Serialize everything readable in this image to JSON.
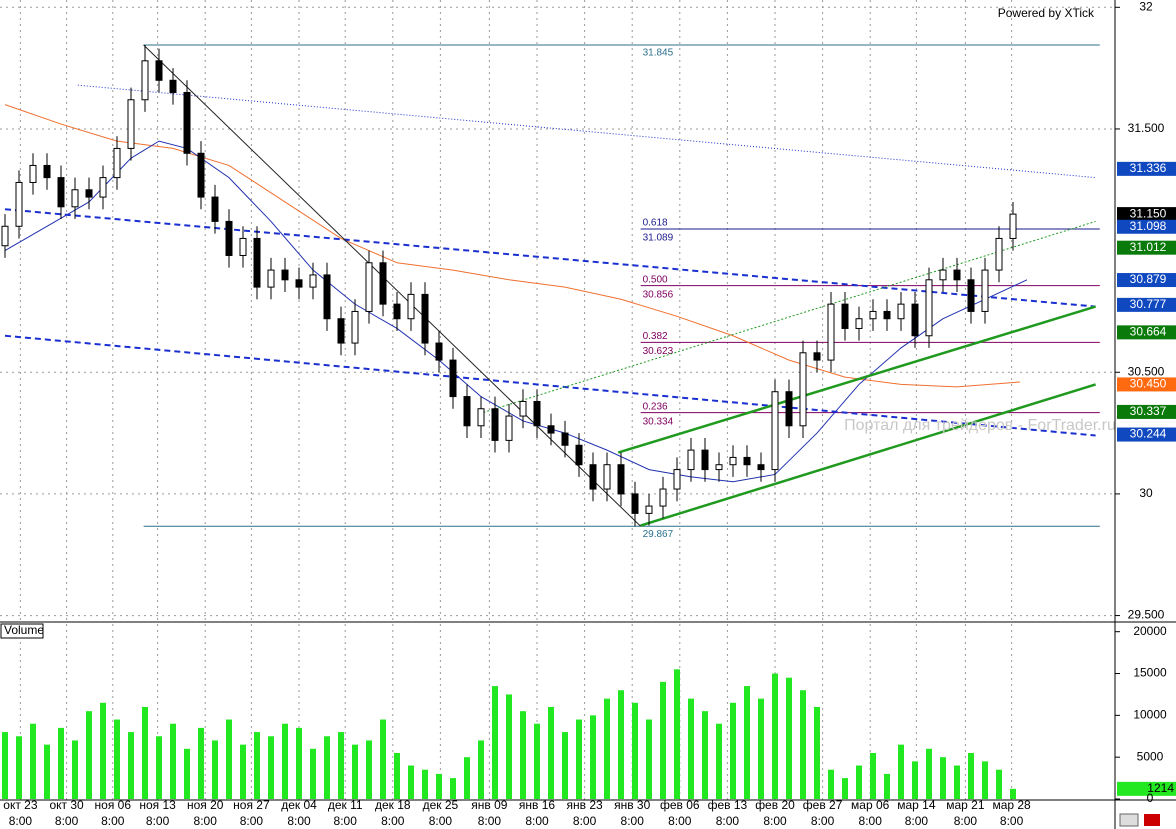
{
  "chart_data": [
    {
      "type": "candlestick",
      "credit": "Powered by XTick",
      "watermark": "Портал для трейдеров - ForTrader.ru",
      "up_color": "#ffffff",
      "down_color": "#000000",
      "wick_color": "#000000",
      "xlim": [
        0,
        79
      ],
      "ylim": [
        29.49,
        32.03
      ],
      "yticks": [
        {
          "value": 32,
          "label": "32"
        },
        {
          "value": 31.5,
          "label": "31.500"
        },
        {
          "value": 30.5,
          "label": "30.500"
        },
        {
          "value": 30,
          "label": "30"
        },
        {
          "value": 29.5,
          "label": "29.500"
        }
      ],
      "grid": true,
      "xticks": [
        {
          "value": 1.1,
          "label": "окт 23"
        },
        {
          "value": 4.4,
          "label": "окт 30"
        },
        {
          "value": 7.7,
          "label": "ноя 06"
        },
        {
          "value": 10.9,
          "label": "ноя 13"
        },
        {
          "value": 14.3,
          "label": "ноя 20"
        },
        {
          "value": 17.6,
          "label": "ноя 27"
        },
        {
          "value": 21,
          "label": "дек 04"
        },
        {
          "value": 24.3,
          "label": "дек 11"
        },
        {
          "value": 27.7,
          "label": "дек 18"
        },
        {
          "value": 31.1,
          "label": "дек 25"
        },
        {
          "value": 34.6,
          "label": "янв 09"
        },
        {
          "value": 38,
          "label": "янв 16"
        },
        {
          "value": 41.4,
          "label": "янв 23"
        },
        {
          "value": 44.8,
          "label": "янв 30"
        },
        {
          "value": 48.2,
          "label": "фев 06"
        },
        {
          "value": 51.6,
          "label": "фев 13"
        },
        {
          "value": 55,
          "label": "фев 20"
        },
        {
          "value": 58.4,
          "label": "фев 27"
        },
        {
          "value": 61.8,
          "label": "мар 06"
        },
        {
          "value": 65.1,
          "label": "мар 14"
        },
        {
          "value": 68.6,
          "label": "мар 21"
        },
        {
          "value": 71.9,
          "label": "мар 28"
        }
      ],
      "xtick_time": "8:00",
      "open": [
        31.02,
        31.1,
        31.28,
        31.35,
        31.3,
        31.18,
        31.25,
        31.22,
        31.3,
        31.42,
        31.62,
        31.78,
        31.7,
        31.65,
        31.4,
        31.22,
        31.12,
        30.98,
        31.05,
        30.85,
        30.92,
        30.88,
        30.85,
        30.9,
        30.72,
        30.62,
        30.75,
        30.95,
        30.78,
        30.72,
        30.82,
        30.62,
        30.55,
        30.4,
        30.28,
        30.35,
        30.22,
        30.32,
        30.38,
        30.28,
        30.25,
        30.2,
        30.12,
        30.02,
        30.12,
        30.0,
        29.92,
        29.95,
        30.02,
        30.1,
        30.18,
        30.1,
        30.12,
        30.15,
        30.12,
        30.1,
        30.42,
        30.28,
        30.58,
        30.55,
        30.78,
        30.68,
        30.72,
        30.75,
        30.72,
        30.78,
        30.65,
        30.88,
        30.92,
        30.88,
        30.75,
        30.92,
        31.05
      ],
      "high": [
        31.15,
        31.33,
        31.4,
        31.4,
        31.35,
        31.3,
        31.3,
        31.35,
        31.47,
        31.67,
        31.845,
        31.83,
        31.75,
        31.7,
        31.45,
        31.27,
        31.17,
        31.1,
        31.1,
        30.97,
        30.97,
        30.93,
        30.95,
        30.95,
        30.77,
        30.8,
        31.0,
        31.0,
        30.83,
        30.87,
        30.87,
        30.67,
        30.6,
        30.45,
        30.4,
        30.4,
        30.37,
        30.43,
        30.43,
        30.33,
        30.3,
        30.25,
        30.17,
        30.17,
        30.17,
        30.05,
        30.0,
        30.07,
        30.15,
        30.23,
        30.23,
        30.17,
        30.2,
        30.2,
        30.17,
        30.47,
        30.47,
        30.63,
        30.63,
        30.83,
        30.83,
        30.77,
        30.8,
        30.8,
        30.83,
        30.83,
        30.93,
        30.97,
        30.97,
        30.93,
        30.97,
        31.1,
        31.2
      ],
      "low": [
        30.97,
        31.05,
        31.23,
        31.25,
        31.13,
        31.13,
        31.17,
        31.17,
        31.25,
        31.37,
        31.57,
        31.65,
        31.6,
        31.35,
        31.17,
        31.07,
        30.93,
        30.93,
        30.8,
        30.8,
        30.83,
        30.8,
        30.8,
        30.67,
        30.57,
        30.57,
        30.7,
        30.73,
        30.67,
        30.67,
        30.57,
        30.5,
        30.35,
        30.23,
        30.23,
        30.17,
        30.17,
        30.27,
        30.23,
        30.2,
        30.15,
        30.07,
        29.97,
        29.97,
        29.95,
        29.867,
        29.87,
        29.9,
        29.97,
        30.05,
        30.05,
        30.05,
        30.07,
        30.07,
        30.05,
        30.05,
        30.23,
        30.23,
        30.5,
        30.5,
        30.63,
        30.63,
        30.67,
        30.67,
        30.67,
        30.6,
        30.6,
        30.83,
        30.83,
        30.7,
        30.7,
        30.87,
        31.0
      ],
      "close": [
        31.1,
        31.28,
        31.35,
        31.3,
        31.18,
        31.25,
        31.22,
        31.3,
        31.42,
        31.62,
        31.78,
        31.7,
        31.65,
        31.4,
        31.22,
        31.12,
        30.98,
        31.05,
        30.85,
        30.92,
        30.88,
        30.85,
        30.9,
        30.72,
        30.62,
        30.75,
        30.95,
        30.78,
        30.72,
        30.82,
        30.62,
        30.55,
        30.4,
        30.28,
        30.35,
        30.22,
        30.32,
        30.38,
        30.28,
        30.25,
        30.2,
        30.12,
        30.02,
        30.12,
        30.0,
        29.92,
        29.95,
        30.02,
        30.1,
        30.18,
        30.1,
        30.12,
        30.15,
        30.12,
        30.1,
        30.42,
        30.28,
        30.58,
        30.55,
        30.78,
        30.68,
        30.72,
        30.75,
        30.72,
        30.78,
        30.65,
        30.88,
        30.92,
        30.88,
        30.75,
        30.92,
        31.05,
        31.15
      ],
      "fib_levels": [
        {
          "color": "#2b6f8c",
          "x": [
            9.9,
            78.2
          ],
          "price": {
            "value": 31.845,
            "label": "31.845"
          }
        },
        {
          "color": "#1a1a8c",
          "x": [
            45.4,
            78.2
          ],
          "ratio": {
            "value": 0.618,
            "label": "0.618"
          },
          "price": {
            "value": 31.089,
            "label": "31.089"
          }
        },
        {
          "color": "#800060",
          "x": [
            45.4,
            78.2
          ],
          "ratio": {
            "value": 0.5,
            "label": "0.500"
          },
          "price": {
            "value": 30.856,
            "label": "30.856"
          }
        },
        {
          "color": "#800060",
          "x": [
            45.4,
            78.2
          ],
          "ratio": {
            "value": 0.382,
            "label": "0.382"
          },
          "price": {
            "value": 30.623,
            "label": "30.623"
          }
        },
        {
          "color": "#800060",
          "x": [
            45.4,
            78.2
          ],
          "ratio": {
            "value": 0.236,
            "label": "0.236"
          },
          "price": {
            "value": 30.334,
            "label": "30.334"
          }
        },
        {
          "color": "#2b6f8c",
          "x": [
            9.9,
            78.2
          ],
          "price": {
            "value": 29.867,
            "label": "29.867"
          }
        }
      ],
      "overlays": [
        {
          "color": "#f07030",
          "width": 1,
          "dash": "",
          "points": [
            [
              0,
              31.6
            ],
            [
              4,
              31.52
            ],
            [
              8,
              31.45
            ],
            [
              12,
              31.42
            ],
            [
              16,
              31.35
            ],
            [
              20,
              31.2
            ],
            [
              24,
              31.05
            ],
            [
              28,
              30.95
            ],
            [
              32,
              30.92
            ],
            [
              36,
              30.88
            ],
            [
              40,
              30.85
            ],
            [
              44,
              30.8
            ],
            [
              48,
              30.73
            ],
            [
              52,
              30.65
            ],
            [
              56,
              30.55
            ],
            [
              60,
              30.48
            ],
            [
              64,
              30.45
            ],
            [
              68,
              30.44
            ],
            [
              72.5,
              30.46
            ]
          ]
        },
        {
          "color": "#2030b0",
          "width": 1,
          "dash": "",
          "points": [
            [
              0,
              31.0
            ],
            [
              3,
              31.1
            ],
            [
              6,
              31.2
            ],
            [
              9,
              31.38
            ],
            [
              11,
              31.45
            ],
            [
              13,
              31.42
            ],
            [
              16,
              31.3
            ],
            [
              19,
              31.12
            ],
            [
              22,
              30.92
            ],
            [
              25,
              30.78
            ],
            [
              28,
              30.68
            ],
            [
              31,
              30.55
            ],
            [
              34,
              30.4
            ],
            [
              37,
              30.3
            ],
            [
              40,
              30.25
            ],
            [
              43,
              30.18
            ],
            [
              46,
              30.1
            ],
            [
              49,
              30.07
            ],
            [
              52,
              30.05
            ],
            [
              55,
              30.08
            ],
            [
              58,
              30.25
            ],
            [
              61,
              30.45
            ],
            [
              64,
              30.6
            ],
            [
              67,
              30.72
            ],
            [
              70,
              30.8
            ],
            [
              73,
              30.88
            ]
          ]
        },
        {
          "color": "#1a2fd0",
          "width": 2,
          "dash": "6 4",
          "points": [
            [
              0,
              31.17
            ],
            [
              77.9,
              30.77
            ]
          ]
        },
        {
          "color": "#1a2fd0",
          "width": 2,
          "dash": "6 4",
          "points": [
            [
              0,
              30.65
            ],
            [
              77.9,
              30.24
            ]
          ]
        },
        {
          "color": "#1a2fd0",
          "width": 1,
          "dash": "1 2",
          "points": [
            [
              5.2,
              31.68
            ],
            [
              77.9,
              31.3
            ]
          ]
        },
        {
          "color": "#1f9a1f",
          "width": 2.5,
          "dash": "",
          "points": [
            [
              43.8,
              30.17
            ],
            [
              77.9,
              30.77
            ]
          ]
        },
        {
          "color": "#1f9a1f",
          "width": 2.5,
          "dash": "",
          "points": [
            [
              45.4,
              29.87
            ],
            [
              77.9,
              30.45
            ]
          ]
        },
        {
          "color": "#1f9a1f",
          "width": 1,
          "dash": "2 2",
          "points": [
            [
              33.9,
              30.33
            ],
            [
              77.9,
              31.12
            ]
          ]
        },
        {
          "color": "#222222",
          "width": 1,
          "dash": "",
          "points": [
            [
              9.9,
              31.845
            ],
            [
              45.4,
              29.867
            ]
          ]
        }
      ],
      "price_tags": [
        {
          "color": "#1048c0",
          "value": 31.336,
          "label": "31.336"
        },
        {
          "color": "#000000",
          "value": 31.15,
          "label": "31.150"
        },
        {
          "color": "#1048c0",
          "value": 31.098,
          "label": "31.098"
        },
        {
          "color": "#0a7a0a",
          "value": 31.012,
          "label": "31.012"
        },
        {
          "color": "#1048c0",
          "value": 30.879,
          "label": "30.879"
        },
        {
          "color": "#1048c0",
          "value": 30.777,
          "label": "30.777"
        },
        {
          "color": "#0a7a0a",
          "value": 30.664,
          "label": "30.664"
        },
        {
          "color": "#ff6a10",
          "value": 30.45,
          "label": "30.450"
        },
        {
          "color": "#0a7a0a",
          "value": 30.337,
          "label": "30.337"
        },
        {
          "color": "#1048c0",
          "value": 30.244,
          "label": "30.244"
        }
      ]
    },
    {
      "type": "bar",
      "title": "Volume",
      "color": "#22e822",
      "tag_color": "#22e822",
      "ylim": [
        0,
        20800
      ],
      "yticks": [
        0,
        5000,
        10000,
        15000,
        20000
      ],
      "values": [
        8000,
        7500,
        9000,
        6500,
        8500,
        7000,
        10500,
        11500,
        9500,
        8000,
        11000,
        7500,
        9000,
        6000,
        8500,
        7000,
        9500,
        6500,
        8000,
        7500,
        9000,
        8500,
        6000,
        7500,
        8000,
        6500,
        7000,
        9500,
        5500,
        4000,
        3500,
        3000,
        2500,
        5000,
        7000,
        13500,
        12500,
        10500,
        9000,
        11000,
        8000,
        9500,
        10000,
        12000,
        13000,
        11500,
        9500,
        14000,
        15500,
        12000,
        10500,
        9000,
        11500,
        13500,
        12000,
        15000,
        14500,
        13000,
        11000,
        3500,
        2500,
        4000,
        5500,
        3000,
        6500,
        4500,
        6000,
        5000,
        4000,
        5500,
        4500,
        3500,
        1214
      ]
    }
  ]
}
